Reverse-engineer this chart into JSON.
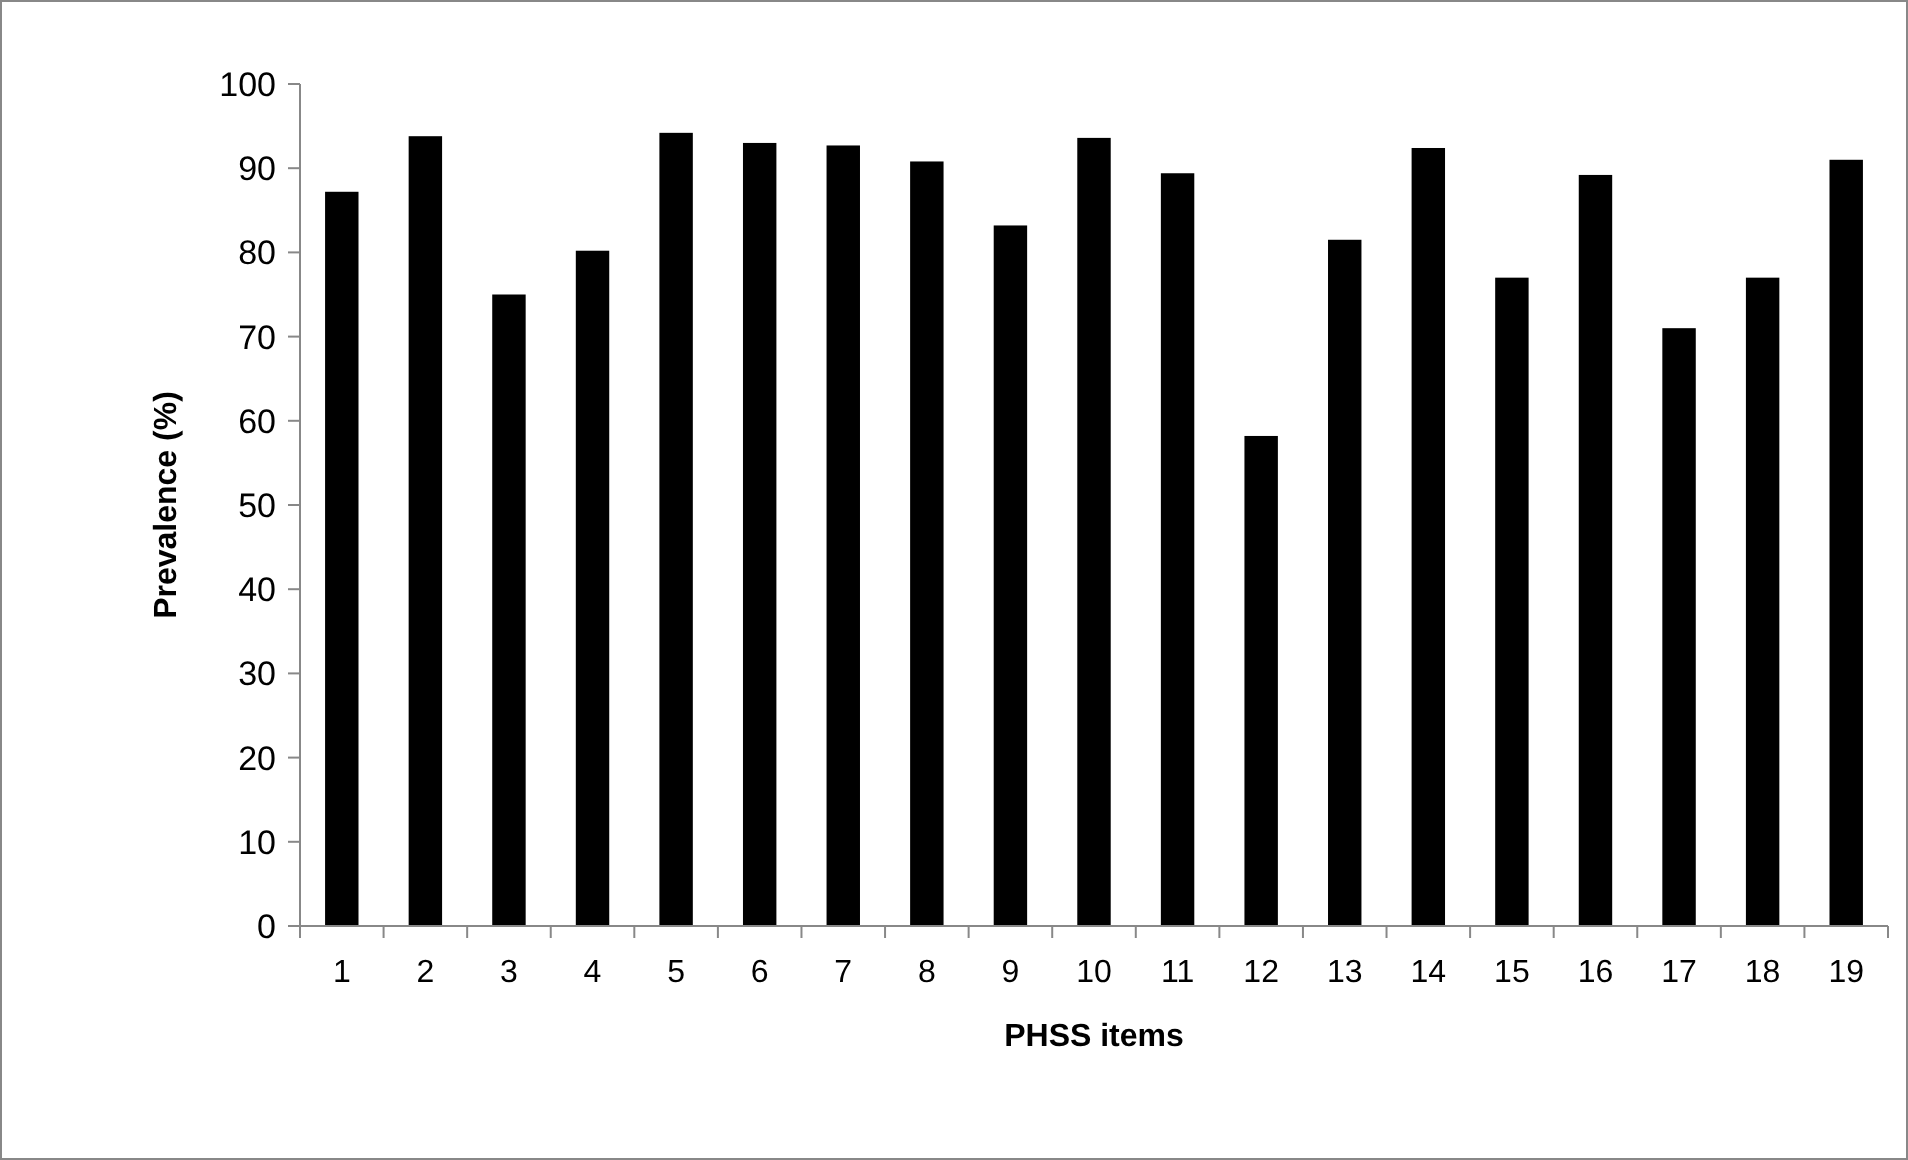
{
  "chart_data": {
    "type": "bar",
    "xlabel": "PHSS items",
    "ylabel": "Prevalence (%)",
    "categories": [
      "1",
      "2",
      "3",
      "4",
      "5",
      "6",
      "7",
      "8",
      "9",
      "10",
      "11",
      "12",
      "13",
      "14",
      "15",
      "16",
      "17",
      "18",
      "19"
    ],
    "values": [
      87.2,
      93.8,
      75,
      80.2,
      94.2,
      93,
      92.7,
      90.8,
      83.2,
      93.6,
      89.4,
      58.2,
      81.5,
      92.4,
      77,
      89.2,
      71,
      77,
      91
    ],
    "color": "#000000",
    "ylim": [
      0,
      100
    ],
    "yticks": [
      0,
      10,
      20,
      30,
      40,
      50,
      60,
      70,
      80,
      90,
      100
    ],
    "grid": false
  }
}
